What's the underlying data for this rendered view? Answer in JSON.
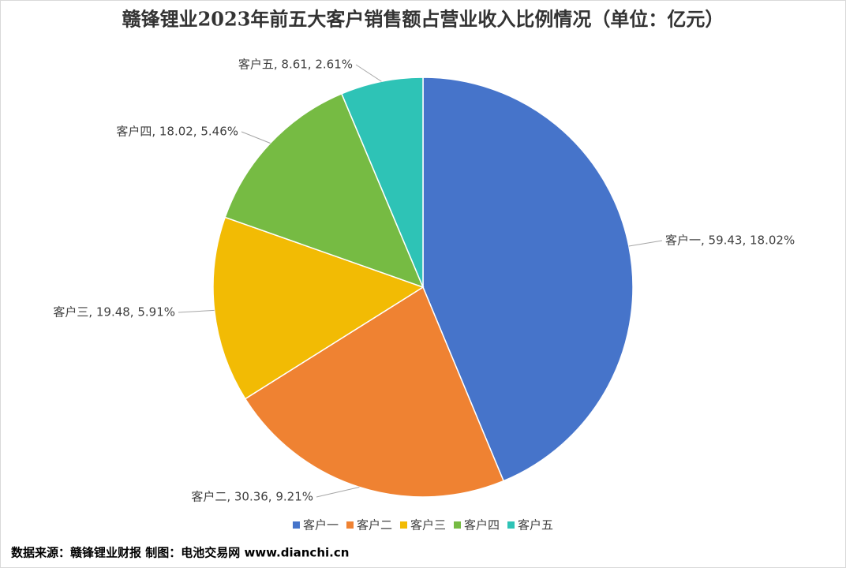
{
  "chart_data": {
    "type": "pie",
    "title": "赣锋锂业2023年前五大客户销售额占营业收入比例情况（单位：亿元）",
    "categories": [
      "客户一",
      "客户二",
      "客户三",
      "客户四",
      "客户五"
    ],
    "values": [
      59.43,
      30.36,
      19.48,
      18.02,
      8.61
    ],
    "value_labels": [
      "客户一, 59.43, 18.02%",
      "客户二, 30.36, 9.21%",
      "客户三, 19.48, 5.91%",
      "客户四, 18.02, 5.46%",
      "客户五, 8.61, 2.61%"
    ],
    "colors": [
      "#4674ca",
      "#ef8232",
      "#f2bb04",
      "#76bb43",
      "#2ec3b6"
    ],
    "legend": "bottom",
    "source": "数据来源：赣锋锂业财报  制图：电池交易网 www.dianchi.cn"
  }
}
